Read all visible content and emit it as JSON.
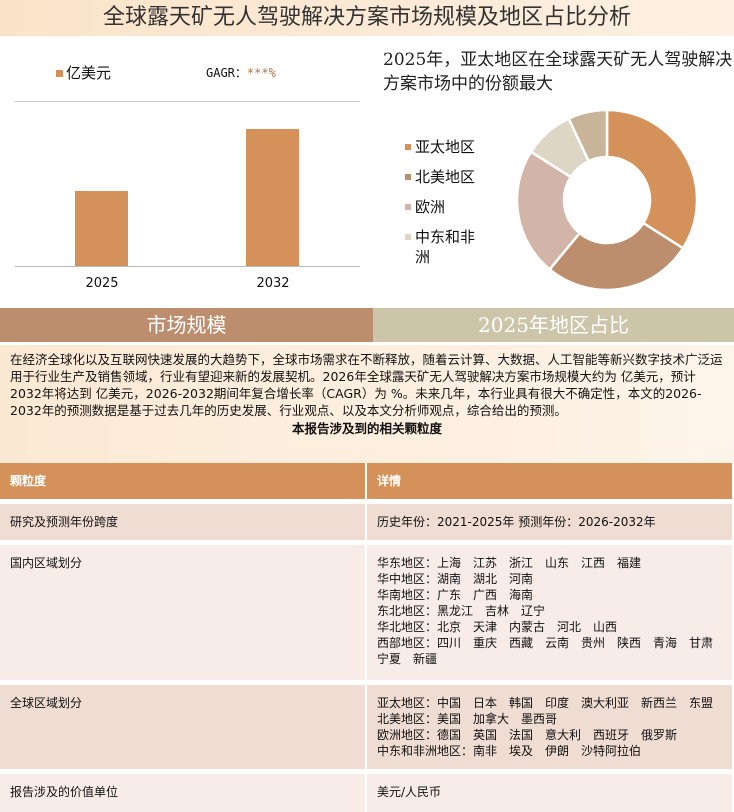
{
  "title": "全球露天矿无人驾驶解决方案市场规模及地区占比分析",
  "bar_chart": {
    "legend": "亿美元",
    "gagr_label": "GAGR：",
    "gagr_value": "***%",
    "color": "#d4915a"
  },
  "chart_data": [
    {
      "type": "bar",
      "categories": [
        "2025",
        "2032"
      ],
      "series": [
        {
          "name": "亿美元",
          "values": [
            55,
            100
          ]
        }
      ],
      "xlabel": "",
      "ylabel": ""
    },
    {
      "type": "pie",
      "title": "2025年，亚太地区在全球露天矿无人驾驶解决方案市场中的份额最大",
      "labels": [
        "亚太地区",
        "北美地区",
        "欧洲",
        "中东和非洲",
        ""
      ],
      "values": [
        34,
        27,
        23,
        9,
        7
      ],
      "colors": [
        "#d4915a",
        "#bc8e6d",
        "#d3b4a8",
        "#ddd6c5",
        "#c8b498"
      ],
      "legend": "left",
      "donut": true
    }
  ],
  "tabs": [
    "市场规模",
    "2025年地区占比"
  ],
  "paragraph": "在经济全球化以及互联网快速发展的大趋势下，全球市场需求在不断释放，随着云计算、大数据、人工智能等新兴数字技术广泛运用于行业生产及销售领域，行业有望迎来新的发展契机。2026年全球露天矿无人驾驶解决方案市场规模大约为 亿美元，预计2032年将达到 亿美元，2026-2032期间年复合增长率（CAGR）为 %。未来几年，本行业具有很大不确定性，本文的2026-2032年的预测数据是基于过去几年的历史发展、行业观点、以及本文分析师观点，综合给出的预测。",
  "table": {
    "caption": "本报告涉及到的相关颗粒度",
    "headers": [
      "颗粒度",
      "详情"
    ],
    "rows": [
      {
        "k": "研究及预测年份跨度",
        "v": [
          "历史年份：2021-2025年 预测年份：2026-2032年"
        ]
      },
      {
        "k": "国内区域划分",
        "v": [
          "华东地区：上海　江苏　浙江　山东　江西　福建",
          "华中地区：湖南　湖北　河南",
          "华南地区：广东　广西　海南",
          "东北地区：黑龙江　吉林　辽宁",
          "华北地区：北京　天津　内蒙古　河北　山西",
          "西部地区：四川　重庆　西藏　云南　贵州　陕西　青海　甘肃",
          "宁夏　新疆"
        ]
      },
      {
        "k": "全球区域划分",
        "v": [
          "亚太地区：中国　日本　韩国　印度　澳大利亚　新西兰　东盟",
          "北美地区：美国　加拿大　墨西哥",
          "欧洲地区：德国　英国　法国　意大利　西班牙　俄罗斯",
          "中东和非洲地区：南非　埃及　伊朗　沙特阿拉伯"
        ]
      },
      {
        "k": "报告涉及的价值单位",
        "v": [
          "美元/人民币"
        ]
      }
    ]
  }
}
